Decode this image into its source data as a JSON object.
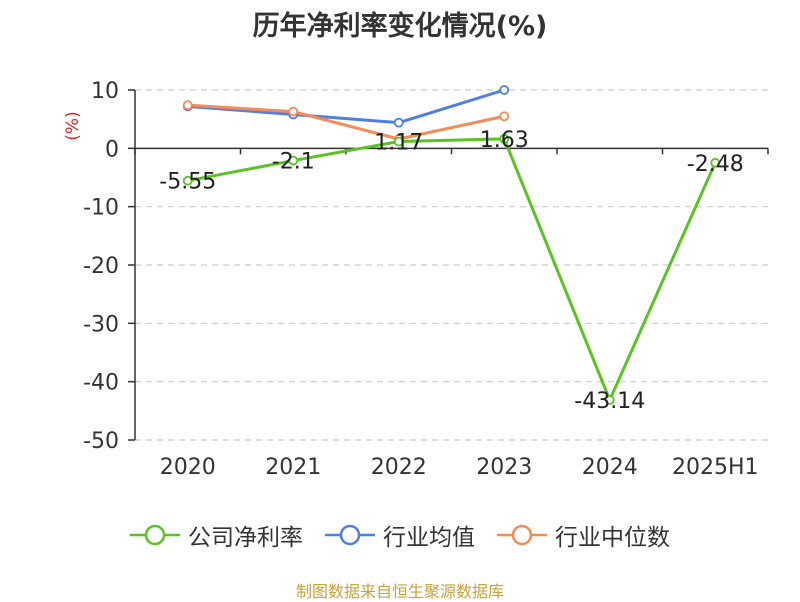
{
  "chart_data": {
    "type": "line",
    "title": "历年净利率变化情况(%)",
    "ylabel": "(%)",
    "xlabel": "",
    "categories": [
      "2020",
      "2021",
      "2022",
      "2023",
      "2024",
      "2025H1"
    ],
    "ylim": [
      -50,
      10
    ],
    "yticks": [
      "10",
      "0",
      "-10",
      "-20",
      "-30",
      "-40",
      "-50"
    ],
    "ytick_values": [
      10,
      0,
      -10,
      -20,
      -30,
      -40,
      -50
    ],
    "grid": true,
    "legend_position": "bottom",
    "series": [
      {
        "name": "公司净利率",
        "color": "#5bc226",
        "values": [
          -5.55,
          -2.1,
          1.17,
          1.63,
          -43.14,
          -2.48
        ],
        "labels": [
          "-5.55",
          "-2.1",
          "1.17",
          "1.63",
          "-43.14",
          "-2.48"
        ]
      },
      {
        "name": "行业均值",
        "color": "#4f7fdf",
        "values": [
          7.2,
          5.8,
          4.4,
          10.0,
          null,
          null
        ]
      },
      {
        "name": "行业中位数",
        "color": "#f58b57",
        "values": [
          7.4,
          6.3,
          1.6,
          5.5,
          null,
          null
        ]
      }
    ]
  },
  "footer": {
    "source": "制图数据来自恒生聚源数据库"
  }
}
